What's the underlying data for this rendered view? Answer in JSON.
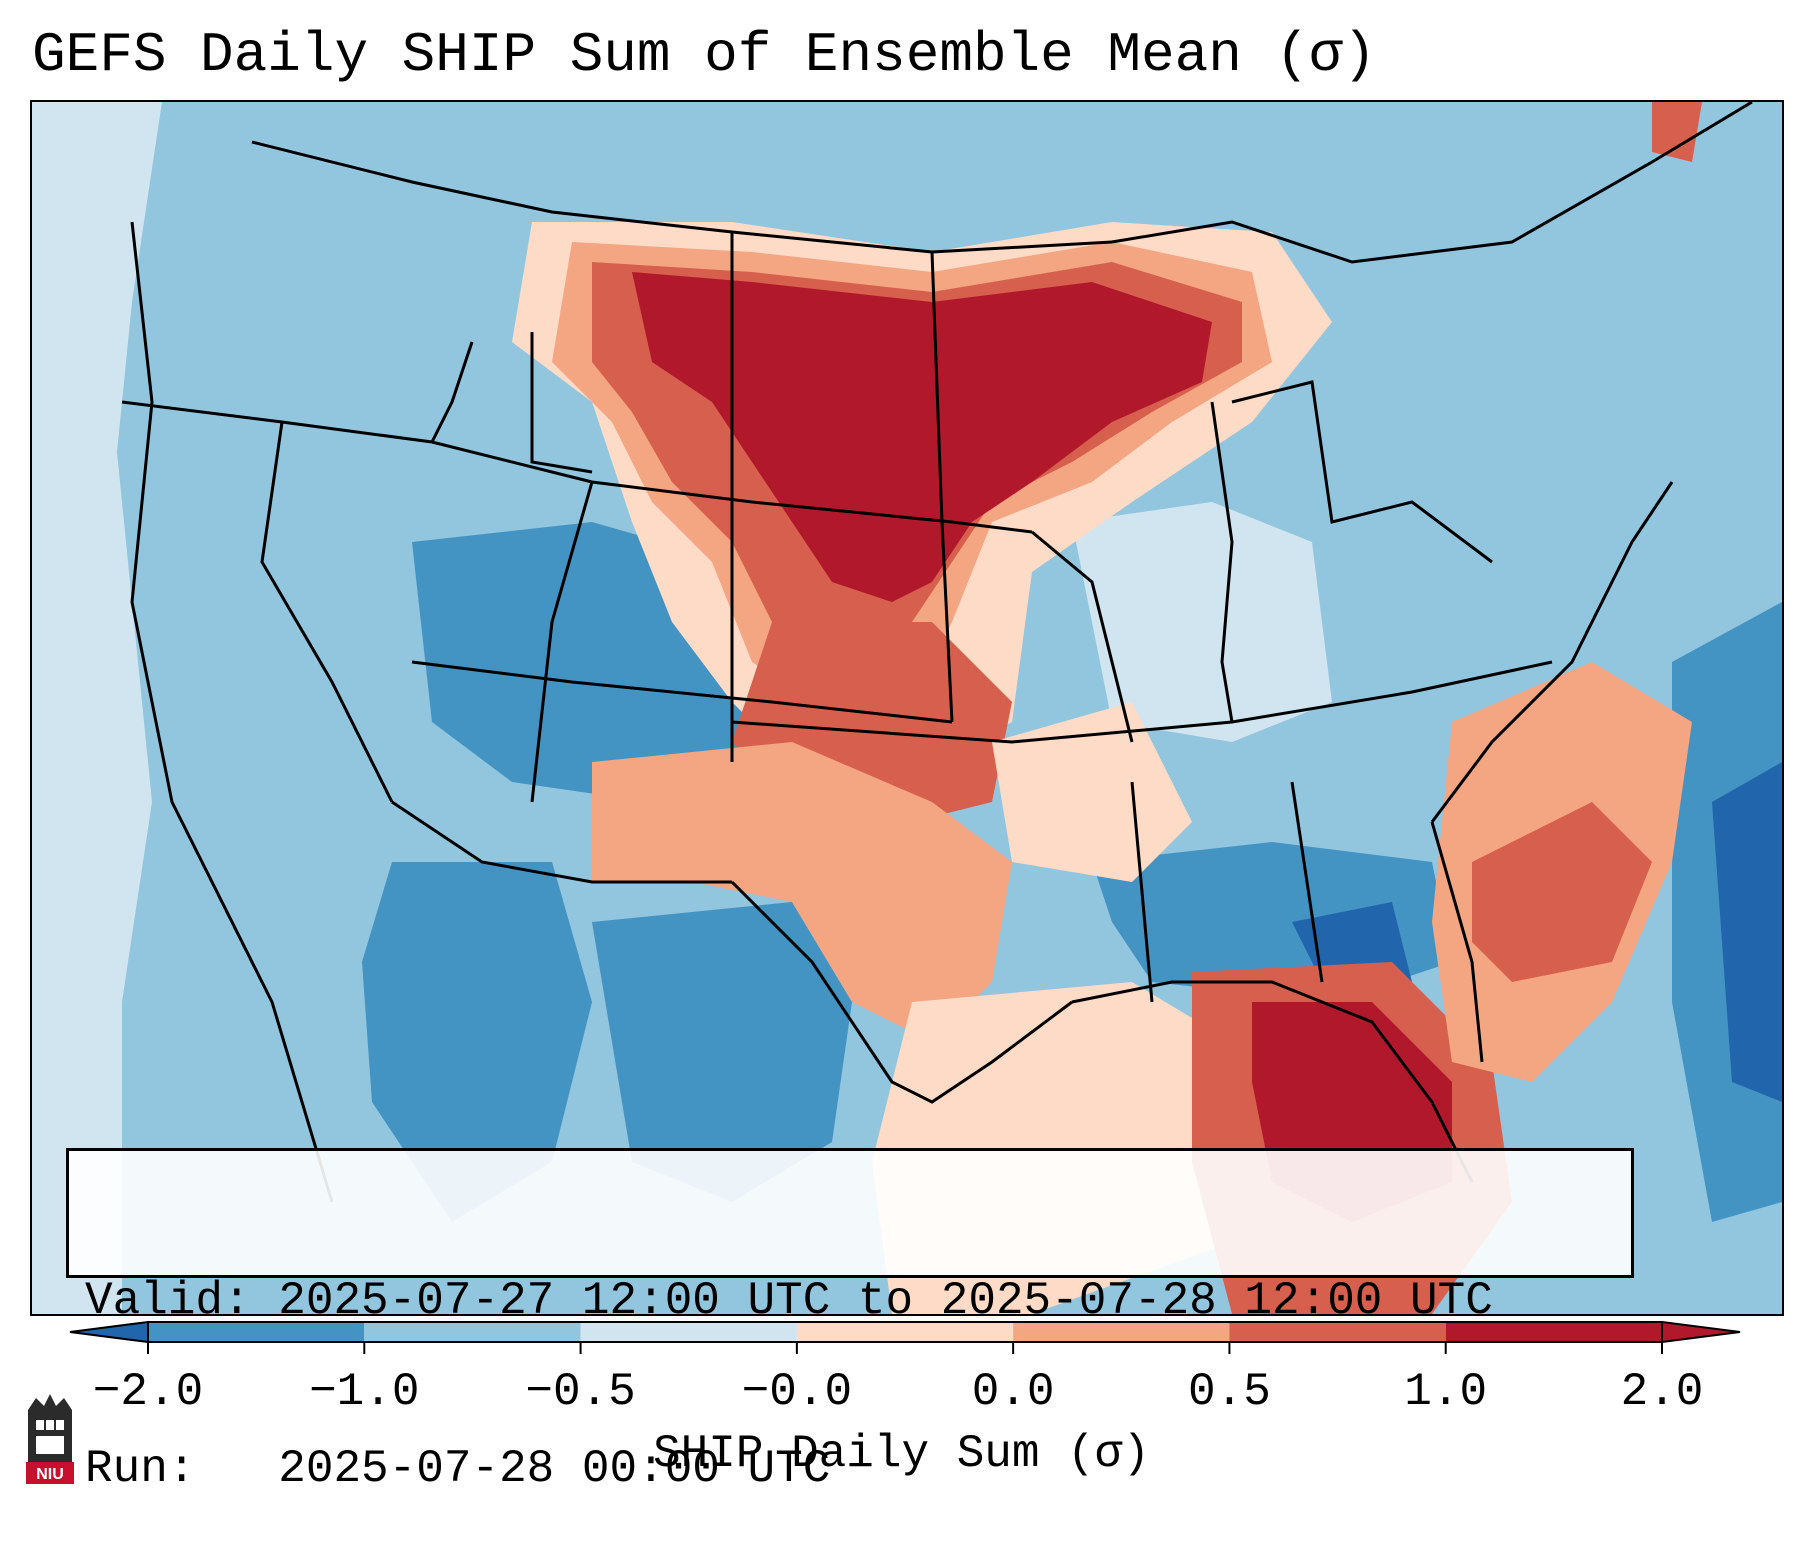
{
  "title": "GEFS Daily SHIP Sum of Ensemble Mean (σ)",
  "info": {
    "valid_line": "Valid: 2025-07-27 12:00 UTC to 2025-07-28 12:00 UTC",
    "run_line": "Run:   2025-07-28 00:00 UTC"
  },
  "colorbar": {
    "label": "SHIP Daily Sum (σ)",
    "ticks": [
      "−2.0",
      "−1.0",
      "−0.5",
      "−0.0",
      "0.0",
      "0.5",
      "1.0",
      "2.0"
    ],
    "colors": [
      "#2166ac",
      "#4393c3",
      "#92c5de",
      "#d1e5f0",
      "#fddbc7",
      "#f4a582",
      "#d6604d",
      "#b2182b"
    ],
    "extend": "both"
  },
  "logo": {
    "text": "NIU",
    "icon": "niu-castle-logo-icon"
  },
  "map": {
    "projection": "Lambert conformal, CONUS",
    "field": "SHIP daily sum standardized anomaly"
  }
}
